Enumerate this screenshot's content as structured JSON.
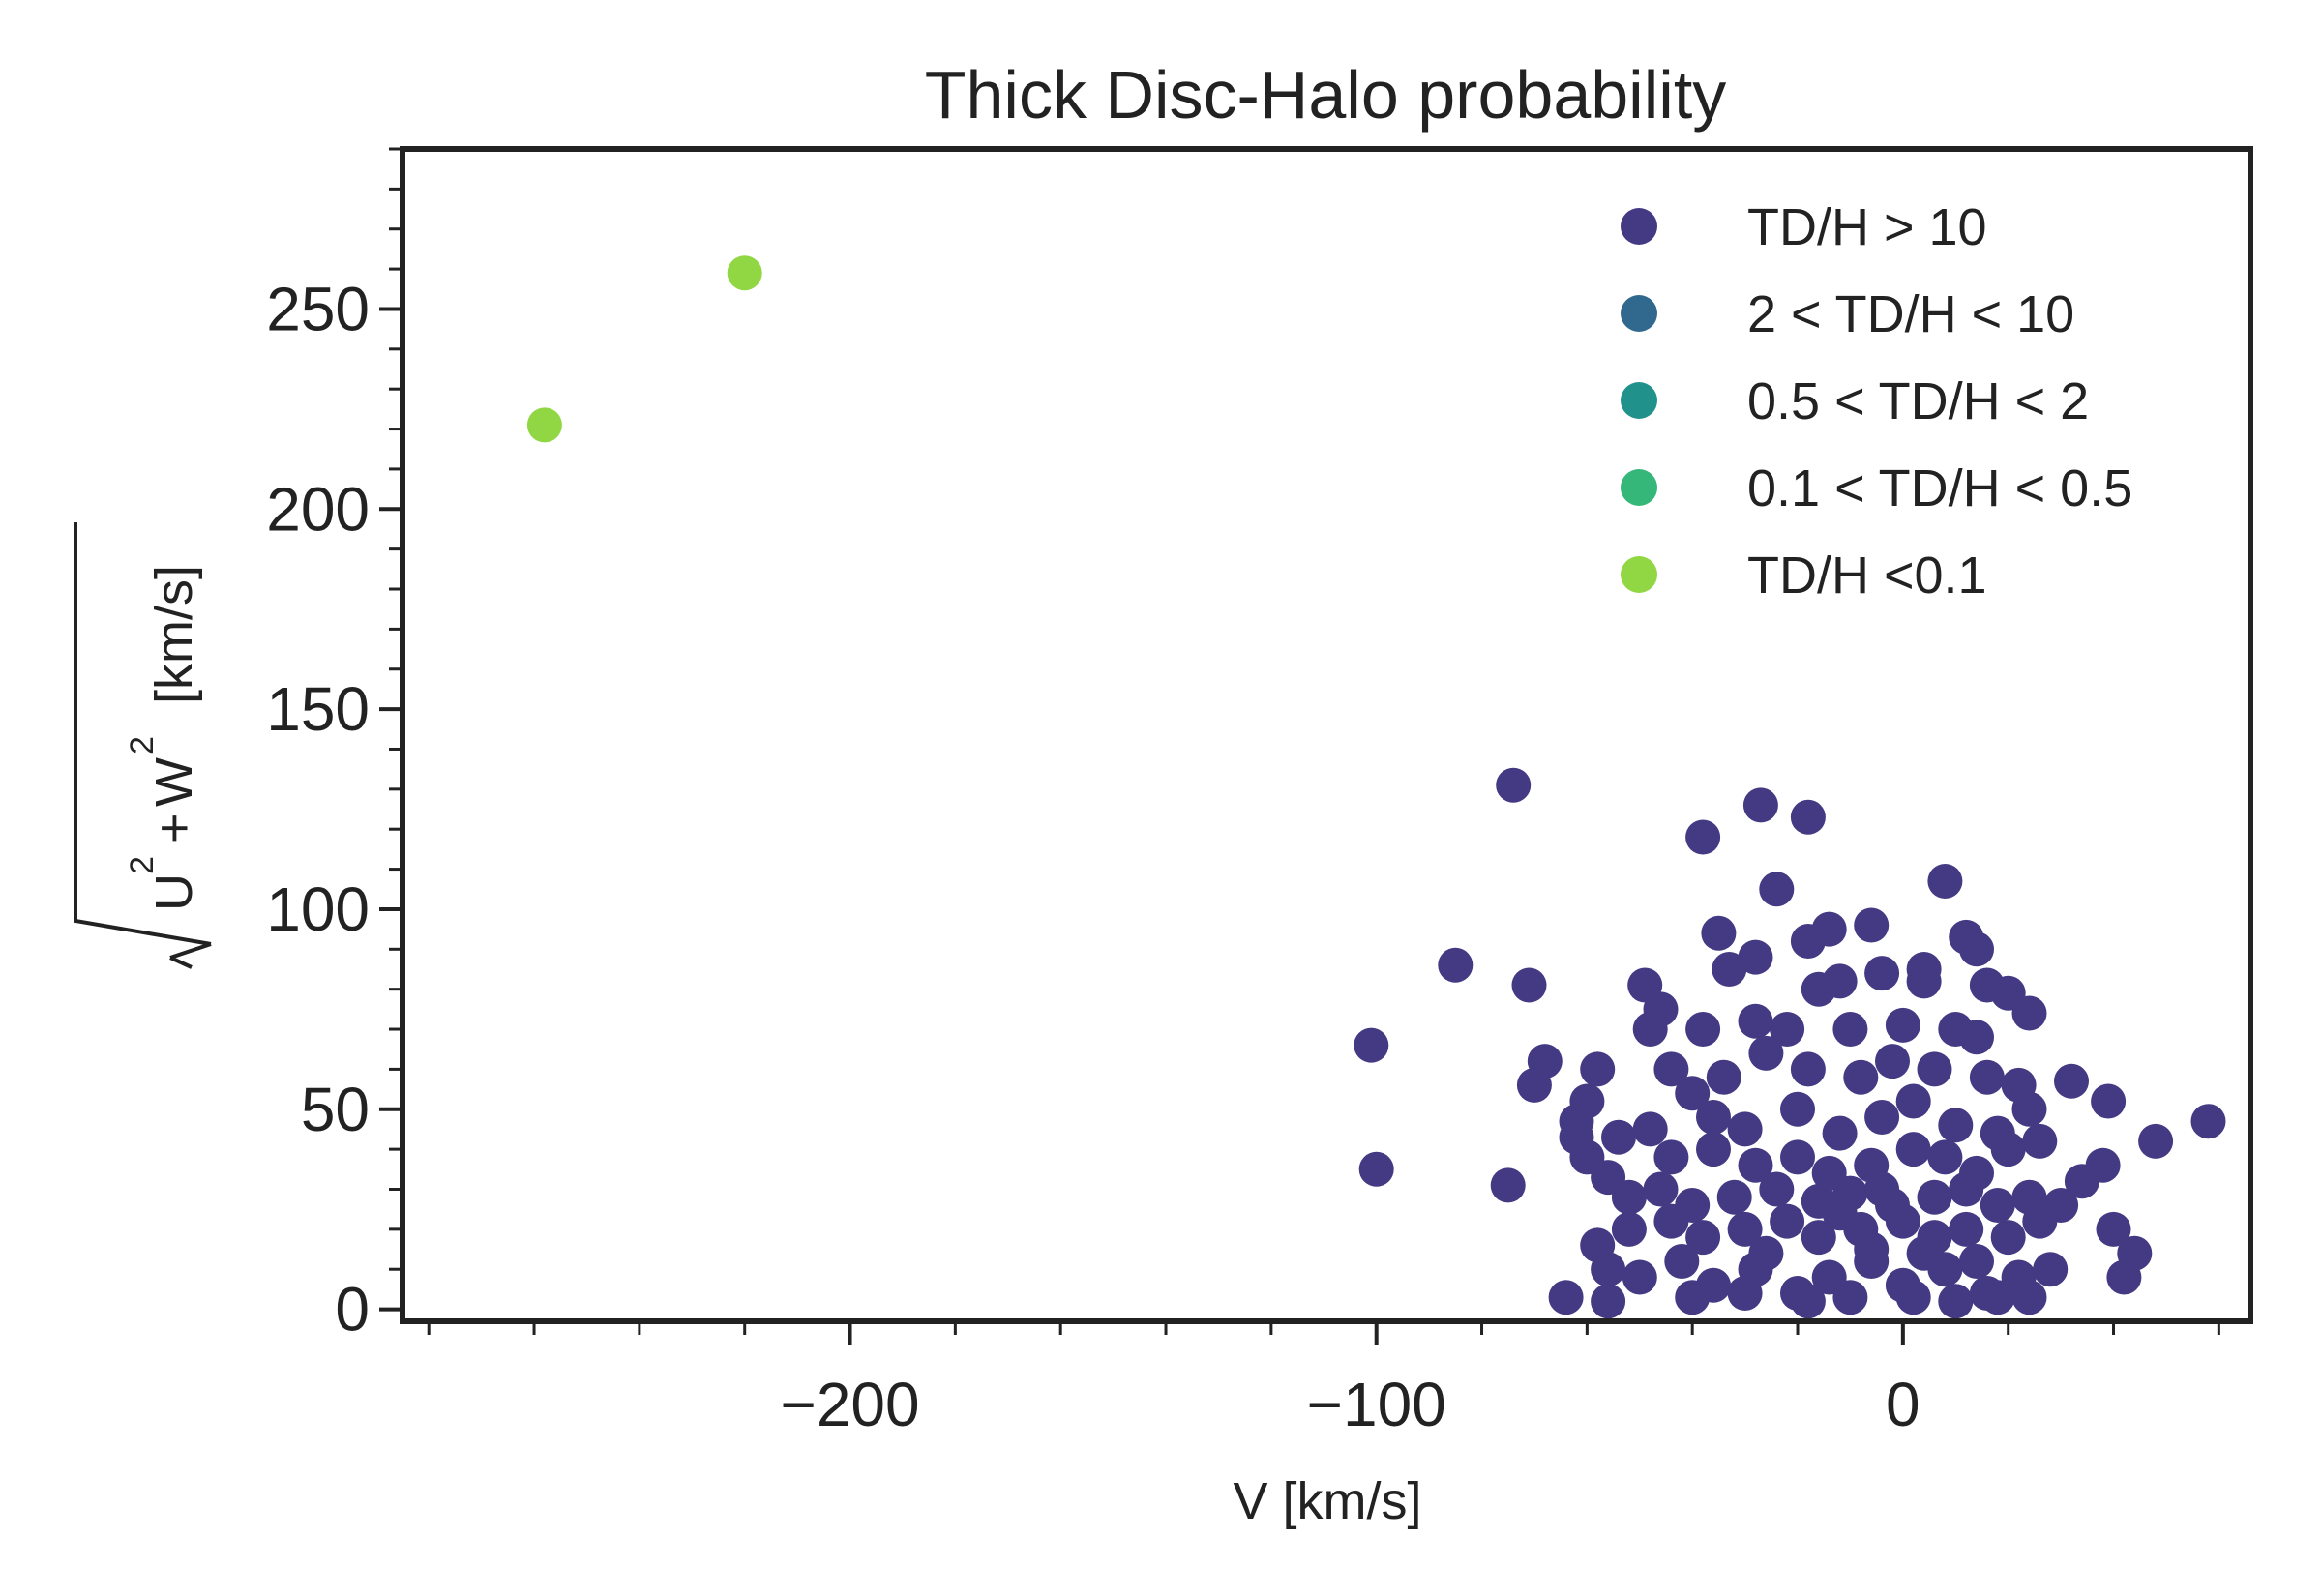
{
  "chart_data": {
    "type": "scatter",
    "title": "Thick Disc-Halo probability",
    "xlabel": "V [km/s]",
    "ylabel": {
      "radicand_u": "U",
      "radicand_plus": "+",
      "radicand_w": "W",
      "exponent": "2",
      "units": "[km/s]"
    },
    "xlim": [
      -285,
      66
    ],
    "ylim": [
      -3,
      290
    ],
    "xticks": [
      -200,
      -100,
      0
    ],
    "xtick_labels": [
      "−200",
      "−100",
      "0"
    ],
    "yticks": [
      0,
      50,
      100,
      150,
      200,
      250
    ],
    "ytick_labels": [
      "0",
      "50",
      "100",
      "150",
      "200",
      "250"
    ],
    "grid": false,
    "legend_position": "top-right",
    "colors": {
      "td_h_gt_10": "#443983",
      "td_h_2_10": "#31688e",
      "td_h_05_2": "#21918c",
      "td_h_01_05": "#35b779",
      "td_h_lt_01": "#90d743",
      "axes": "#222222"
    },
    "series": [
      {
        "name": "TD/H > 10",
        "color": "#443983",
        "points": [
          [
            -74,
            131
          ],
          [
            -27,
            126
          ],
          [
            -18,
            123
          ],
          [
            -38,
            118
          ],
          [
            8,
            107
          ],
          [
            -24,
            105
          ],
          [
            -35,
            94
          ],
          [
            -14,
            95
          ],
          [
            -18,
            92
          ],
          [
            -6,
            96
          ],
          [
            12,
            93
          ],
          [
            14,
            90
          ],
          [
            -28,
            88
          ],
          [
            -33,
            85
          ],
          [
            4,
            85
          ],
          [
            -85,
            86
          ],
          [
            -71,
            81
          ],
          [
            -49,
            81
          ],
          [
            -12,
            82
          ],
          [
            -16,
            80
          ],
          [
            -4,
            84
          ],
          [
            4,
            82
          ],
          [
            16,
            81
          ],
          [
            20,
            79
          ],
          [
            -46,
            75
          ],
          [
            -48,
            70
          ],
          [
            -38,
            70
          ],
          [
            -28,
            72
          ],
          [
            -22,
            70
          ],
          [
            -10,
            70
          ],
          [
            0,
            71
          ],
          [
            10,
            70
          ],
          [
            14,
            68
          ],
          [
            24,
            74
          ],
          [
            -101,
            66
          ],
          [
            -68,
            62
          ],
          [
            -70,
            56
          ],
          [
            -58,
            60
          ],
          [
            -60,
            52
          ],
          [
            -62,
            47
          ],
          [
            -62,
            43
          ],
          [
            -60,
            38
          ],
          [
            -44,
            60
          ],
          [
            -40,
            54
          ],
          [
            -34,
            58
          ],
          [
            -26,
            64
          ],
          [
            -18,
            60
          ],
          [
            -8,
            58
          ],
          [
            -2,
            62
          ],
          [
            6,
            60
          ],
          [
            16,
            58
          ],
          [
            22,
            56
          ],
          [
            32,
            57
          ],
          [
            -36,
            48
          ],
          [
            -30,
            45
          ],
          [
            -20,
            50
          ],
          [
            -12,
            44
          ],
          [
            -4,
            48
          ],
          [
            2,
            52
          ],
          [
            10,
            46
          ],
          [
            18,
            44
          ],
          [
            24,
            50
          ],
          [
            -54,
            43
          ],
          [
            -48,
            45
          ],
          [
            -44,
            38
          ],
          [
            -36,
            40
          ],
          [
            -28,
            36
          ],
          [
            -20,
            38
          ],
          [
            -14,
            34
          ],
          [
            -6,
            36
          ],
          [
            2,
            40
          ],
          [
            8,
            38
          ],
          [
            14,
            34
          ],
          [
            20,
            40
          ],
          [
            26,
            42
          ],
          [
            -56,
            33
          ],
          [
            -52,
            28
          ],
          [
            -46,
            30
          ],
          [
            -40,
            26
          ],
          [
            -32,
            28
          ],
          [
            -24,
            30
          ],
          [
            -16,
            27
          ],
          [
            -10,
            29
          ],
          [
            -2,
            26
          ],
          [
            6,
            28
          ],
          [
            12,
            30
          ],
          [
            18,
            26
          ],
          [
            24,
            28
          ],
          [
            30,
            26
          ],
          [
            34,
            32
          ],
          [
            38,
            36
          ],
          [
            -52,
            20
          ],
          [
            -44,
            22
          ],
          [
            -38,
            18
          ],
          [
            -30,
            20
          ],
          [
            -22,
            22
          ],
          [
            -16,
            18
          ],
          [
            -8,
            20
          ],
          [
            0,
            22
          ],
          [
            6,
            18
          ],
          [
            12,
            20
          ],
          [
            20,
            18
          ],
          [
            26,
            22
          ],
          [
            -58,
            16
          ],
          [
            -56,
            10
          ],
          [
            -50,
            8
          ],
          [
            -42,
            12
          ],
          [
            -36,
            6
          ],
          [
            -28,
            10
          ],
          [
            -20,
            4
          ],
          [
            -14,
            8
          ],
          [
            -6,
            12
          ],
          [
            0,
            6
          ],
          [
            8,
            10
          ],
          [
            16,
            4
          ],
          [
            22,
            8
          ],
          [
            28,
            10
          ],
          [
            -64,
            3
          ],
          [
            -56,
            2
          ],
          [
            -40,
            3
          ],
          [
            -30,
            4
          ],
          [
            -18,
            2
          ],
          [
            -10,
            3
          ],
          [
            2,
            3
          ],
          [
            10,
            2
          ],
          [
            18,
            3
          ],
          [
            24,
            3
          ],
          [
            -100,
            35
          ],
          [
            -75,
            31
          ],
          [
            39,
            52
          ],
          [
            48,
            42
          ],
          [
            58,
            47
          ],
          [
            40,
            20
          ],
          [
            42,
            8
          ],
          [
            44,
            14
          ],
          [
            -6,
            15
          ],
          [
            4,
            14
          ],
          [
            14,
            12
          ],
          [
            -26,
            14
          ],
          [
            -12,
            24
          ],
          [
            -4,
            30
          ]
        ]
      },
      {
        "name": "2 < TD/H < 10",
        "color": "#31688e",
        "points": []
      },
      {
        "name": "0.5 < TD/H < 2",
        "color": "#21918c",
        "points": []
      },
      {
        "name": "0.1 < TD/H < 0.5",
        "color": "#35b779",
        "points": []
      },
      {
        "name": "TD/H <0.1",
        "color": "#90d743",
        "points": [
          [
            -258,
            221
          ],
          [
            -220,
            259
          ]
        ]
      }
    ]
  }
}
